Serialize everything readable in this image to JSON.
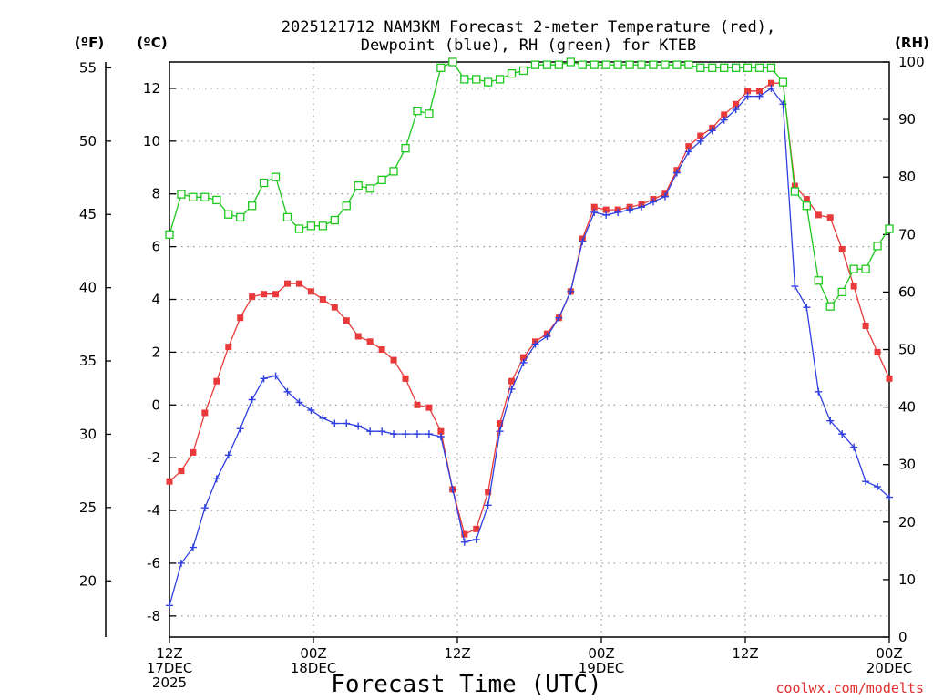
{
  "chart_data": {
    "type": "line",
    "title_line1": "2025121712 NAM3KM Forecast 2-meter Temperature (red),",
    "title_line2": "Dewpoint (blue), RH (green) for KTEB",
    "xlabel": "Forecast Time (UTC)",
    "credit": "coolwx.com/modelts",
    "units": {
      "fahrenheit": "(ºF)",
      "celsius": "(ºC)",
      "rh": "(RH)"
    },
    "x_ticks": [
      {
        "hour": 0,
        "lines": [
          "12Z",
          "17DEC",
          "2025"
        ]
      },
      {
        "hour": 12,
        "lines": [
          "00Z",
          "18DEC"
        ]
      },
      {
        "hour": 24,
        "lines": [
          "12Z"
        ]
      },
      {
        "hour": 36,
        "lines": [
          "00Z",
          "19DEC"
        ]
      },
      {
        "hour": 48,
        "lines": [
          "12Z"
        ]
      },
      {
        "hour": 60,
        "lines": [
          "00Z",
          "20DEC"
        ]
      }
    ],
    "x_range_hours": [
      0,
      60
    ],
    "celsius_axis": {
      "range": [
        -8.8,
        13.0
      ],
      "ticks": [
        "-8",
        "-6",
        "-4",
        "-2",
        "0",
        "2",
        "4",
        "6",
        "8",
        "10",
        "12"
      ]
    },
    "fahrenheit_axis": {
      "range": [
        16.16,
        55.4
      ],
      "ticks": [
        "20",
        "25",
        "30",
        "35",
        "40",
        "45",
        "50",
        "55"
      ]
    },
    "rh_axis": {
      "range": [
        0,
        100
      ],
      "ticks": [
        "0",
        "10",
        "20",
        "30",
        "40",
        "50",
        "60",
        "70",
        "80",
        "90",
        "100"
      ]
    },
    "series": [
      {
        "name": "Temperature",
        "units": "C",
        "color": "#e83a3a",
        "marker": "square-filled",
        "values": [
          -2.9,
          -2.5,
          -1.8,
          -0.3,
          0.9,
          2.2,
          3.3,
          4.1,
          4.2,
          4.2,
          4.6,
          4.6,
          4.3,
          4.0,
          3.7,
          3.2,
          2.6,
          2.4,
          2.1,
          1.7,
          1.0,
          0.0,
          -0.1,
          -1.0,
          -3.2,
          -4.9,
          -4.7,
          -3.3,
          -0.7,
          0.9,
          1.8,
          2.4,
          2.7,
          3.3,
          4.3,
          6.3,
          7.5,
          7.4,
          7.4,
          7.5,
          7.6,
          7.8,
          8.0,
          8.9,
          9.8,
          10.2,
          10.5,
          11.0,
          11.4,
          11.9,
          11.9,
          12.2,
          12.2,
          8.3,
          7.8,
          7.2,
          7.1,
          5.9,
          4.5,
          3.0,
          2.0,
          1.0
        ]
      },
      {
        "name": "Dewpoint",
        "units": "C",
        "color": "#2f3fe0",
        "marker": "plus",
        "values": [
          -7.6,
          -6.0,
          -5.4,
          -3.9,
          -2.8,
          -1.9,
          -0.9,
          0.2,
          1.0,
          1.1,
          0.5,
          0.1,
          -0.2,
          -0.5,
          -0.7,
          -0.7,
          -0.8,
          -1.0,
          -1.0,
          -1.1,
          -1.1,
          -1.1,
          -1.1,
          -1.2,
          -3.2,
          -5.2,
          -5.1,
          -3.8,
          -1.0,
          0.6,
          1.6,
          2.3,
          2.6,
          3.3,
          4.3,
          6.2,
          7.3,
          7.2,
          7.3,
          7.4,
          7.5,
          7.7,
          7.9,
          8.8,
          9.6,
          10.0,
          10.4,
          10.8,
          11.2,
          11.7,
          11.7,
          12.0,
          11.4,
          4.5,
          3.7,
          0.5,
          -0.6,
          -1.1,
          -1.6,
          -2.9,
          -3.1,
          -3.5
        ]
      },
      {
        "name": "RH",
        "units": "%",
        "color": "#1ec81e",
        "marker": "square-open",
        "values": [
          70,
          77,
          76.5,
          76.5,
          76,
          73.5,
          73,
          75,
          79,
          80,
          73,
          71,
          71.5,
          71.5,
          72.5,
          75,
          78.5,
          78,
          79.5,
          81,
          85,
          91.5,
          91,
          99,
          100,
          97,
          97,
          96.5,
          97,
          98,
          98.5,
          99.5,
          99.5,
          99.5,
          100,
          99.5,
          99.5,
          99.5,
          99.5,
          99.5,
          99.5,
          99.5,
          99.5,
          99.5,
          99.5,
          99,
          99,
          99,
          99,
          99,
          99,
          99,
          96.5,
          77.5,
          75,
          62,
          57.5,
          60,
          64,
          64,
          68,
          71
        ]
      }
    ]
  }
}
